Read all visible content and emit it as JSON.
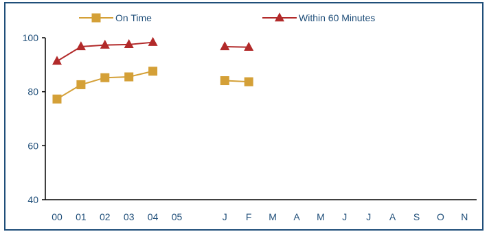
{
  "chart_data": {
    "type": "line",
    "title": "",
    "xlabel": "",
    "ylabel": "",
    "categories": [
      "00",
      "01",
      "02",
      "03",
      "04",
      "05",
      "",
      "J",
      "F",
      "M",
      "A",
      "M",
      "J",
      "J",
      "A",
      "S",
      "O",
      "N"
    ],
    "ylim": [
      40,
      100
    ],
    "yticks": [
      40,
      60,
      80,
      100
    ],
    "grid": false,
    "legend_position": "top",
    "series": [
      {
        "name": "On Time",
        "color": "#d4a037",
        "marker": "square",
        "values": [
          77.3,
          82.6,
          85.2,
          85.5,
          87.6,
          null,
          null,
          84.1,
          83.7,
          null,
          null,
          null,
          null,
          null,
          null,
          null,
          null,
          null
        ]
      },
      {
        "name": "Within 60 Minutes",
        "color": "#b22a2a",
        "marker": "triangle",
        "values": [
          91.3,
          96.7,
          97.3,
          97.5,
          98.3,
          null,
          null,
          96.7,
          96.5,
          null,
          null,
          null,
          null,
          null,
          null,
          null,
          null,
          null
        ]
      }
    ]
  }
}
